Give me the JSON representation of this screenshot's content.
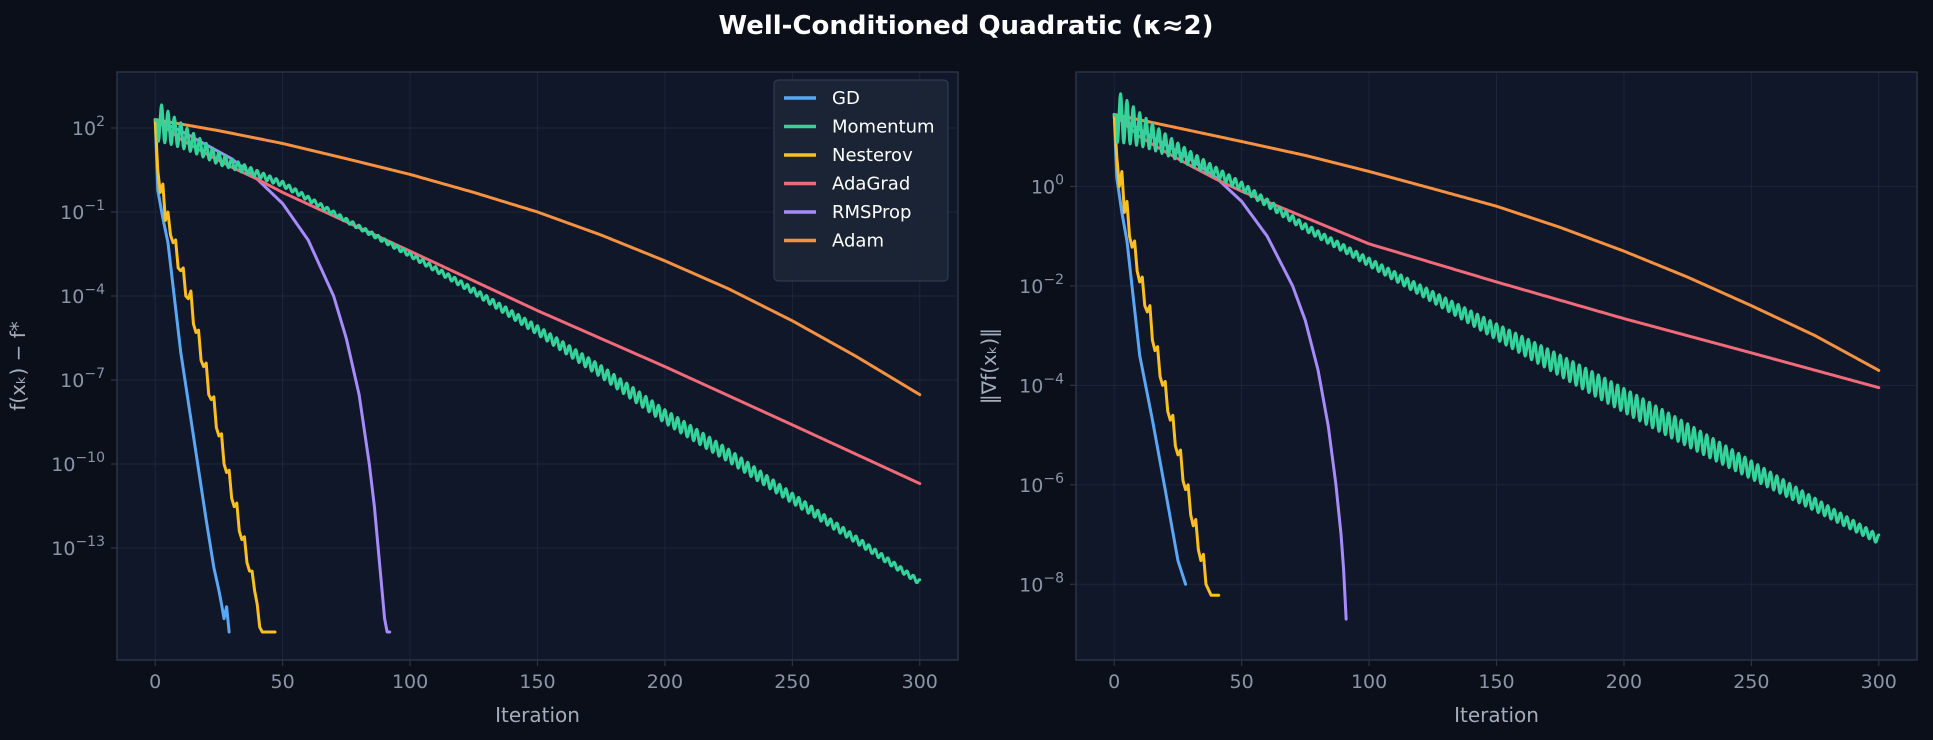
{
  "title": "Well-Conditioned Quadratic (κ≈2)",
  "colors": {
    "figure_bg": "#0b0f19",
    "axes_bg": "#0f1729",
    "grid": "#1d2638",
    "spine": "#2a3448",
    "tick_text": "#8b95a7",
    "label_text": "#a3acbb",
    "legend_bg": "#1b2536"
  },
  "legend": {
    "placement": "top-right",
    "entries": [
      {
        "name": "GD",
        "color": "#5aa8f5"
      },
      {
        "name": "Momentum",
        "color": "#34d399"
      },
      {
        "name": "Nesterov",
        "color": "#fbbf24"
      },
      {
        "name": "AdaGrad",
        "color": "#f06a7a"
      },
      {
        "name": "RMSProp",
        "color": "#a78bfa"
      },
      {
        "name": "Adam",
        "color": "#f59140"
      }
    ]
  },
  "chart_data": [
    {
      "type": "line",
      "yscale": "log",
      "xlabel": "Iteration",
      "ylabel": "f(xₖ) − f*",
      "xlim": [
        -15,
        315
      ],
      "ylim": [
        1e-17,
        10000.0
      ],
      "x_ticks": [
        0,
        50,
        100,
        150,
        200,
        250,
        300
      ],
      "y_ticks": [
        {
          "value": 100,
          "base": "10",
          "exp": "2"
        },
        {
          "value": 0.1,
          "base": "10",
          "exp": "−1"
        },
        {
          "value": 0.0001,
          "base": "10",
          "exp": "−4"
        },
        {
          "value": 1e-07,
          "base": "10",
          "exp": "−7"
        },
        {
          "value": 1e-10,
          "base": "10",
          "exp": "−10"
        },
        {
          "value": 1e-13,
          "base": "10",
          "exp": "−13"
        }
      ],
      "grid": true,
      "show_legend": true,
      "series": [
        {
          "name": "GD",
          "color": "#5aa8f5",
          "points": [
            [
              0,
              200
            ],
            [
              1,
              0.6
            ],
            [
              3,
              0.06
            ],
            [
              5,
              0.008
            ],
            [
              10,
              1e-06
            ],
            [
              15,
              1e-09
            ],
            [
              20,
              1e-12
            ],
            [
              23,
              2e-14
            ],
            [
              25,
              3e-15
            ],
            [
              26,
              1e-15
            ],
            [
              27,
              3e-16
            ],
            [
              28,
              8e-16
            ],
            [
              29,
              1e-16
            ]
          ]
        },
        {
          "name": "Nesterov",
          "color": "#fbbf24",
          "points": [
            [
              0,
              200
            ],
            [
              1,
              3
            ],
            [
              2,
              0.5
            ],
            [
              3,
              1
            ],
            [
              4,
              0.05
            ],
            [
              5,
              0.1
            ],
            [
              6,
              0.015
            ],
            [
              7,
              0.008
            ],
            [
              8,
              0.01
            ],
            [
              9,
              0.001
            ],
            [
              10,
              0.0008
            ],
            [
              11,
              0.001
            ],
            [
              12,
              0.0001
            ],
            [
              13,
              8e-05
            ],
            [
              14,
              0.00015
            ],
            [
              15,
              1e-05
            ],
            [
              16,
              5e-06
            ],
            [
              17,
              6e-06
            ],
            [
              18,
              5e-07
            ],
            [
              19,
              3e-07
            ],
            [
              20,
              4e-07
            ],
            [
              21,
              3e-08
            ],
            [
              22,
              2e-08
            ],
            [
              23,
              2.5e-08
            ],
            [
              24,
              2e-09
            ],
            [
              25,
              1e-09
            ],
            [
              26,
              1.2e-09
            ],
            [
              27,
              1e-10
            ],
            [
              28,
              5e-11
            ],
            [
              29,
              6e-11
            ],
            [
              30,
              6e-12
            ],
            [
              31,
              3e-12
            ],
            [
              32,
              4e-12
            ],
            [
              33,
              4e-13
            ],
            [
              34,
              2e-13
            ],
            [
              35,
              2.5e-13
            ],
            [
              36,
              3e-14
            ],
            [
              37,
              1.5e-14
            ],
            [
              38,
              1.5e-14
            ],
            [
              39,
              3e-15
            ],
            [
              40,
              1e-15
            ],
            [
              41,
              1.5e-16
            ],
            [
              42,
              1e-16
            ],
            [
              47,
              1e-16
            ]
          ]
        },
        {
          "name": "RMSProp",
          "color": "#a78bfa",
          "points": [
            [
              0,
              200
            ],
            [
              10,
              80
            ],
            [
              20,
              25
            ],
            [
              30,
              8
            ],
            [
              40,
              1.5
            ],
            [
              50,
              0.2
            ],
            [
              60,
              0.01
            ],
            [
              70,
              0.0001
            ],
            [
              75,
              3e-06
            ],
            [
              80,
              3e-08
            ],
            [
              84,
              1e-10
            ],
            [
              86,
              3e-12
            ],
            [
              88,
              3e-14
            ],
            [
              89,
              3e-15
            ],
            [
              90,
              3e-16
            ],
            [
              91,
              1e-16
            ],
            [
              92,
              1e-16
            ]
          ]
        },
        {
          "name": "AdaGrad",
          "color": "#f06a7a",
          "points": [
            [
              0,
              200
            ],
            [
              10,
              40
            ],
            [
              20,
              12
            ],
            [
              30,
              4
            ],
            [
              40,
              1.5
            ],
            [
              50,
              0.5
            ],
            [
              100,
              0.004
            ],
            [
              150,
              3e-05
            ],
            [
              200,
              3e-07
            ],
            [
              250,
              2.5e-09
            ],
            [
              300,
              2e-11
            ]
          ]
        },
        {
          "name": "Adam",
          "color": "#f59140",
          "points": [
            [
              0,
              200
            ],
            [
              25,
              80
            ],
            [
              50,
              28
            ],
            [
              75,
              8
            ],
            [
              100,
              2.2
            ],
            [
              125,
              0.5
            ],
            [
              150,
              0.1
            ],
            [
              175,
              0.015
            ],
            [
              200,
              0.0018
            ],
            [
              225,
              0.00018
            ],
            [
              250,
              1.3e-05
            ],
            [
              275,
              7e-07
            ],
            [
              300,
              3e-08
            ]
          ]
        },
        {
          "name": "Momentum",
          "color": "#34d399",
          "osc": {
            "decay": 0.06,
            "amp": 0.7,
            "period": 2.5
          },
          "points": [
            [
              0,
              200
            ],
            [
              25,
              8
            ],
            [
              50,
              1
            ],
            [
              75,
              0.05
            ],
            [
              100,
              0.003
            ],
            [
              125,
              0.00015
            ],
            [
              150,
              6e-06
            ],
            [
              175,
              2e-07
            ],
            [
              200,
              5e-09
            ],
            [
              225,
              2e-10
            ],
            [
              250,
              6e-12
            ],
            [
              275,
              2e-13
            ],
            [
              300,
              6e-15
            ]
          ]
        }
      ]
    },
    {
      "type": "line",
      "yscale": "log",
      "xlabel": "Iteration",
      "ylabel": "‖∇f(xₖ)‖",
      "xlim": [
        -15,
        315
      ],
      "ylim": [
        3e-10,
        200
      ],
      "x_ticks": [
        0,
        50,
        100,
        150,
        200,
        250,
        300
      ],
      "y_ticks": [
        {
          "value": 1,
          "base": "10",
          "exp": "0"
        },
        {
          "value": 0.01,
          "base": "10",
          "exp": "−2"
        },
        {
          "value": 0.0001,
          "base": "10",
          "exp": "−4"
        },
        {
          "value": 1e-06,
          "base": "10",
          "exp": "−6"
        },
        {
          "value": 1e-08,
          "base": "10",
          "exp": "−8"
        }
      ],
      "grid": true,
      "show_legend": false,
      "series": [
        {
          "name": "GD",
          "color": "#5aa8f5",
          "points": [
            [
              0,
              28
            ],
            [
              1,
              1.5
            ],
            [
              3,
              0.3
            ],
            [
              5,
              0.08
            ],
            [
              10,
              0.0004
            ],
            [
              15,
              2e-05
            ],
            [
              20,
              8e-07
            ],
            [
              25,
              3e-08
            ],
            [
              28,
              1e-08
            ]
          ]
        },
        {
          "name": "Nesterov",
          "color": "#fbbf24",
          "points": [
            [
              0,
              28
            ],
            [
              1,
              4
            ],
            [
              2,
              1
            ],
            [
              3,
              2
            ],
            [
              4,
              0.3
            ],
            [
              5,
              0.5
            ],
            [
              6,
              0.1
            ],
            [
              7,
              0.06
            ],
            [
              8,
              0.08
            ],
            [
              9,
              0.02
            ],
            [
              10,
              0.012
            ],
            [
              11,
              0.015
            ],
            [
              12,
              0.004
            ],
            [
              13,
              0.003
            ],
            [
              14,
              0.004
            ],
            [
              15,
              0.0008
            ],
            [
              16,
              0.0005
            ],
            [
              17,
              0.0006
            ],
            [
              18,
              0.00015
            ],
            [
              19,
              0.0001
            ],
            [
              20,
              0.00012
            ],
            [
              21,
              3e-05
            ],
            [
              22,
              2e-05
            ],
            [
              23,
              2.5e-05
            ],
            [
              24,
              6e-06
            ],
            [
              25,
              4e-06
            ],
            [
              26,
              5e-06
            ],
            [
              27,
              1.2e-06
            ],
            [
              28,
              8e-07
            ],
            [
              29,
              1e-06
            ],
            [
              30,
              2.5e-07
            ],
            [
              31,
              1.5e-07
            ],
            [
              32,
              2e-07
            ],
            [
              33,
              5e-08
            ],
            [
              34,
              3e-08
            ],
            [
              35,
              4e-08
            ],
            [
              36,
              1e-08
            ],
            [
              38,
              6e-09
            ],
            [
              41,
              6e-09
            ]
          ]
        },
        {
          "name": "RMSProp",
          "color": "#a78bfa",
          "points": [
            [
              0,
              28
            ],
            [
              10,
              14
            ],
            [
              20,
              7
            ],
            [
              30,
              3.5
            ],
            [
              40,
              1.5
            ],
            [
              50,
              0.5
            ],
            [
              60,
              0.1
            ],
            [
              70,
              0.01
            ],
            [
              75,
              0.002
            ],
            [
              80,
              0.0002
            ],
            [
              84,
              1.5e-05
            ],
            [
              87,
              1e-06
            ],
            [
              89,
              1e-07
            ],
            [
              90,
              2e-08
            ],
            [
              91,
              2e-09
            ]
          ]
        },
        {
          "name": "AdaGrad",
          "color": "#f06a7a",
          "points": [
            [
              0,
              28
            ],
            [
              10,
              10
            ],
            [
              20,
              5
            ],
            [
              30,
              2.6
            ],
            [
              40,
              1.4
            ],
            [
              50,
              0.8
            ],
            [
              100,
              0.07
            ],
            [
              150,
              0.012
            ],
            [
              200,
              0.0022
            ],
            [
              250,
              0.00045
            ],
            [
              300,
              9e-05
            ]
          ]
        },
        {
          "name": "Adam",
          "color": "#f59140",
          "points": [
            [
              0,
              28
            ],
            [
              25,
              15
            ],
            [
              50,
              8
            ],
            [
              75,
              4.2
            ],
            [
              100,
              2
            ],
            [
              125,
              0.9
            ],
            [
              150,
              0.4
            ],
            [
              175,
              0.15
            ],
            [
              200,
              0.05
            ],
            [
              225,
              0.015
            ],
            [
              250,
              0.004
            ],
            [
              275,
              0.001
            ],
            [
              300,
              0.0002
            ]
          ]
        },
        {
          "name": "Momentum",
          "color": "#34d399",
          "osc": {
            "decay": 0.06,
            "amp": 0.5,
            "period": 2.5
          },
          "points": [
            [
              0,
              28
            ],
            [
              25,
              5
            ],
            [
              50,
              1
            ],
            [
              75,
              0.15
            ],
            [
              100,
              0.03
            ],
            [
              125,
              0.006
            ],
            [
              150,
              0.0012
            ],
            [
              175,
              0.00025
            ],
            [
              200,
              5e-05
            ],
            [
              225,
              1e-05
            ],
            [
              250,
              2e-06
            ],
            [
              275,
              4e-07
            ],
            [
              300,
              8e-08
            ]
          ]
        }
      ]
    }
  ]
}
